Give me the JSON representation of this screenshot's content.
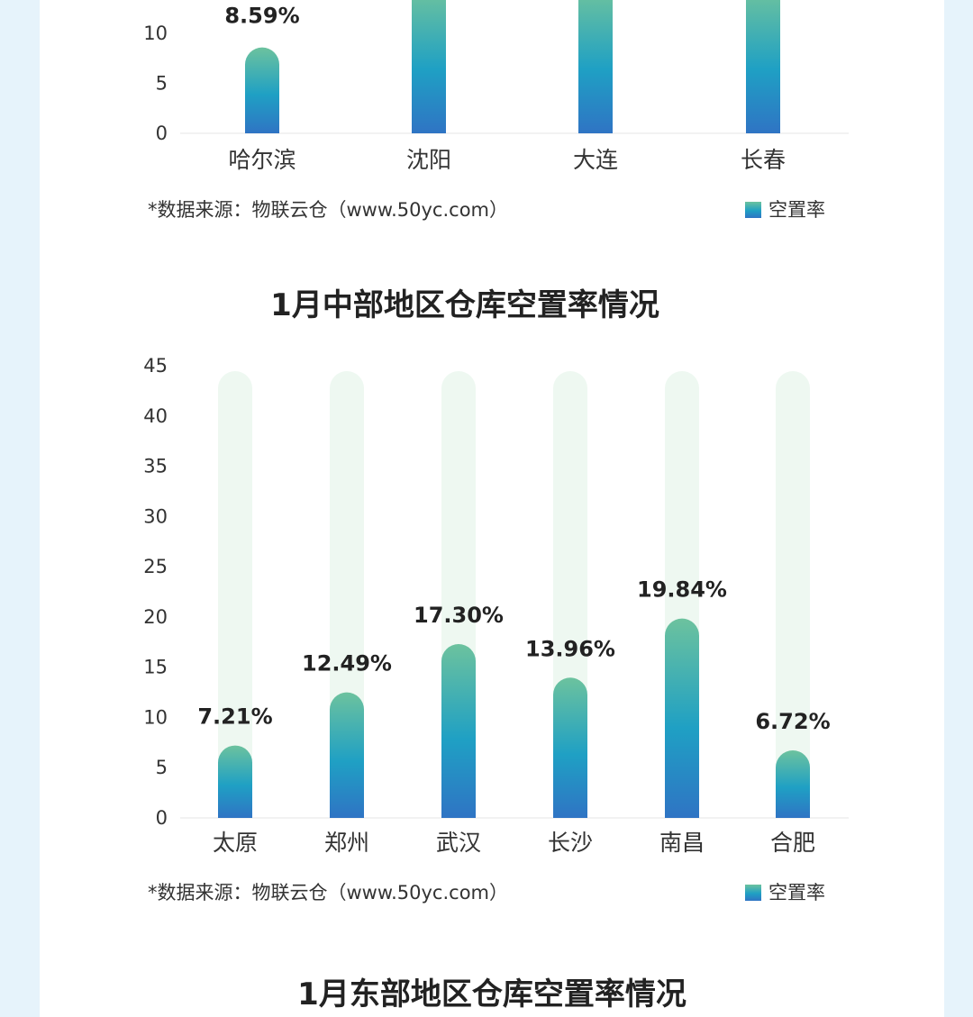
{
  "colors": {
    "page_bg": "#e6f3fb",
    "card_bg": "#ffffff",
    "track": "#eef8f1",
    "bar_top": "#6cc29e",
    "bar_mid": "#1fa0c4",
    "bar_bottom": "#2f74c4",
    "axis": "#e6e6e6"
  },
  "charts": {
    "north": {
      "source": "*数据来源：物联云仓（www.50yc.com）",
      "legend": "空置率"
    },
    "central": {
      "title": "1月中部地区仓库空置率情况",
      "source": "*数据来源：物联云仓（www.50yc.com）",
      "legend": "空置率"
    },
    "east": {
      "title": "1月东部地区仓库空置率情况"
    }
  },
  "chart_data": [
    {
      "type": "bar",
      "title": "",
      "categories": [
        "哈尔滨",
        "沈阳",
        "大连",
        "长春"
      ],
      "series": [
        {
          "name": "空置率",
          "values": [
            8.59,
            null,
            null,
            null
          ]
        }
      ],
      "data_labels": [
        "8.59%",
        "",
        "",
        ""
      ],
      "ylim": [
        0,
        45
      ],
      "yticks_visible": [
        "0",
        "5",
        "10"
      ],
      "note": ""
    },
    {
      "type": "bar",
      "title": "1月中部地区仓库空置率情况",
      "categories": [
        "太原",
        "郑州",
        "武汉",
        "长沙",
        "南昌",
        "合肥"
      ],
      "series": [
        {
          "name": "空置率",
          "values": [
            7.21,
            12.49,
            17.3,
            13.96,
            19.84,
            6.72
          ]
        }
      ],
      "data_labels": [
        "7.21%",
        "12.49%",
        "17.30%",
        "13.96%",
        "19.84%",
        "6.72%"
      ],
      "ylim": [
        0,
        45
      ],
      "yticks": [
        "0",
        "5",
        "10",
        "15",
        "20",
        "25",
        "30",
        "35",
        "40",
        "45"
      ]
    }
  ]
}
